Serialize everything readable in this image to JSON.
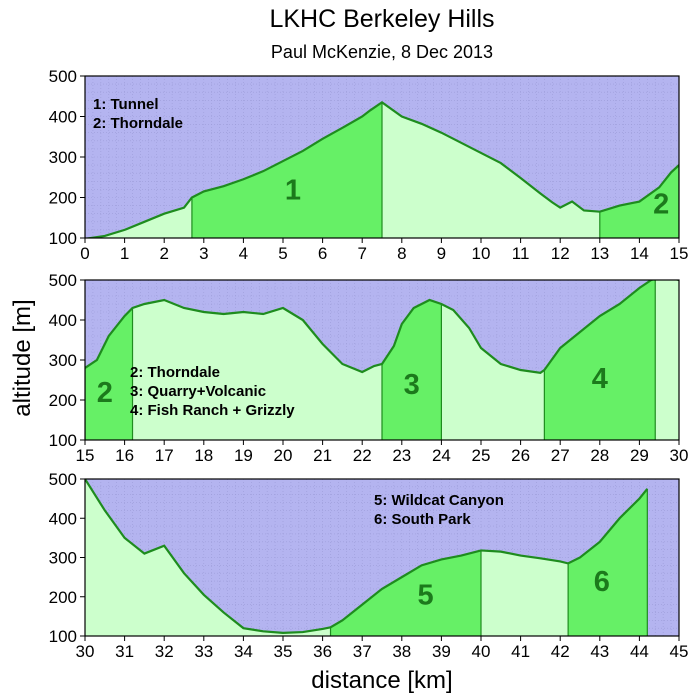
{
  "title": "LKHC Berkeley Hills",
  "subtitle": "Paul McKenzie, 8 Dec 2013",
  "ylabel": "altitude [m]",
  "xlabel": "distance [km]",
  "colors": {
    "plot_bg": "#b4b4f0",
    "grid": "#9c9cd8",
    "climb_fill": "#66f066",
    "flat_fill": "#ccffcc",
    "profile_line": "#1e8c1e",
    "segment_label": "#1c7a1c"
  },
  "chart_data": [
    {
      "type": "area",
      "panel": 1,
      "xlim": [
        0,
        15
      ],
      "ylim": [
        100,
        500
      ],
      "x_ticks": [
        0,
        1,
        2,
        3,
        4,
        5,
        6,
        7,
        8,
        9,
        10,
        11,
        12,
        13,
        14,
        15
      ],
      "y_ticks": [
        100,
        200,
        300,
        400,
        500
      ],
      "grid": true,
      "legend": [
        "1: Tunnel",
        "2: Thorndale"
      ],
      "legend_position": "top-left",
      "x": [
        0,
        0.5,
        1,
        1.5,
        2,
        2.5,
        2.7,
        3,
        3.5,
        4,
        4.5,
        5,
        5.5,
        6,
        6.5,
        7,
        7.2,
        7.5,
        8,
        8.5,
        9,
        9.5,
        10,
        10.5,
        11,
        11.5,
        11.8,
        12,
        12.3,
        12.6,
        13,
        13.5,
        14,
        14.5,
        14.8,
        15
      ],
      "y": [
        98,
        105,
        120,
        140,
        160,
        175,
        200,
        215,
        228,
        245,
        265,
        290,
        315,
        345,
        372,
        400,
        415,
        435,
        400,
        382,
        360,
        335,
        310,
        285,
        248,
        210,
        188,
        175,
        190,
        168,
        165,
        180,
        190,
        225,
        262,
        280
      ],
      "segments": [
        {
          "label": "1",
          "x_start": 2.7,
          "x_end": 7.5,
          "label_x": 5.25,
          "label_y": 195
        },
        {
          "label": "2",
          "x_start": 13,
          "x_end": 15,
          "label_x": 14.55,
          "label_y": 160
        }
      ]
    },
    {
      "type": "area",
      "panel": 2,
      "xlim": [
        15,
        30
      ],
      "ylim": [
        100,
        500
      ],
      "x_ticks": [
        15,
        16,
        17,
        18,
        19,
        20,
        21,
        22,
        23,
        24,
        25,
        26,
        27,
        28,
        29,
        30
      ],
      "y_ticks": [
        100,
        200,
        300,
        400,
        500
      ],
      "grid": true,
      "legend": [
        "2: Thorndale",
        "3: Quarry+Volcanic",
        "4: Fish Ranch + Grizzly"
      ],
      "legend_position": "bottom-left",
      "x": [
        15,
        15.3,
        15.6,
        16,
        16.2,
        16.5,
        17,
        17.5,
        18,
        18.5,
        19,
        19.5,
        20,
        20.5,
        21,
        21.5,
        22,
        22.3,
        22.5,
        22.8,
        23,
        23.3,
        23.7,
        24,
        24.3,
        24.7,
        25,
        25.5,
        26,
        26.5,
        26.6,
        27,
        27.5,
        28,
        28.5,
        29,
        29.3,
        29.6,
        30
      ],
      "y": [
        280,
        300,
        360,
        410,
        430,
        440,
        450,
        430,
        420,
        415,
        420,
        415,
        430,
        400,
        340,
        290,
        270,
        285,
        290,
        335,
        390,
        430,
        450,
        440,
        425,
        380,
        330,
        290,
        275,
        268,
        275,
        330,
        370,
        410,
        440,
        480,
        500,
        510,
        500
      ],
      "segments": [
        {
          "label": "2",
          "x_start": 15,
          "x_end": 16.2,
          "label_x": 15.5,
          "label_y": 195
        },
        {
          "label": "3",
          "x_start": 22.5,
          "x_end": 24,
          "label_x": 23.25,
          "label_y": 215
        },
        {
          "label": "4",
          "x_start": 26.6,
          "x_end": 29.4,
          "label_x": 28,
          "label_y": 230
        }
      ]
    },
    {
      "type": "area",
      "panel": 3,
      "xlim": [
        30,
        45
      ],
      "ylim": [
        100,
        500
      ],
      "x_ticks": [
        30,
        31,
        32,
        33,
        34,
        35,
        36,
        37,
        38,
        39,
        40,
        41,
        42,
        43,
        44,
        45
      ],
      "y_ticks": [
        100,
        200,
        300,
        400,
        500
      ],
      "grid": true,
      "legend": [
        "5: Wildcat Canyon",
        "6: South Park"
      ],
      "legend_position": "top-right",
      "x": [
        30,
        30.5,
        31,
        31.5,
        32,
        32.5,
        33,
        33.5,
        34,
        34.5,
        35,
        35.5,
        36,
        36.2,
        36.5,
        37,
        37.5,
        38,
        38.5,
        39,
        39.5,
        40,
        40.5,
        41,
        41.5,
        42,
        42.2,
        42.5,
        43,
        43.5,
        44,
        44.2
      ],
      "y": [
        500,
        420,
        350,
        310,
        330,
        260,
        205,
        160,
        120,
        112,
        108,
        110,
        118,
        122,
        140,
        180,
        220,
        250,
        280,
        295,
        305,
        318,
        315,
        305,
        298,
        290,
        285,
        300,
        340,
        400,
        450,
        475
      ],
      "segments": [
        {
          "label": "5",
          "x_start": 36.2,
          "x_end": 40,
          "label_x": 38.6,
          "label_y": 180
        },
        {
          "label": "6",
          "x_start": 42.2,
          "x_end": 44.2,
          "label_x": 43.05,
          "label_y": 215
        }
      ]
    }
  ]
}
